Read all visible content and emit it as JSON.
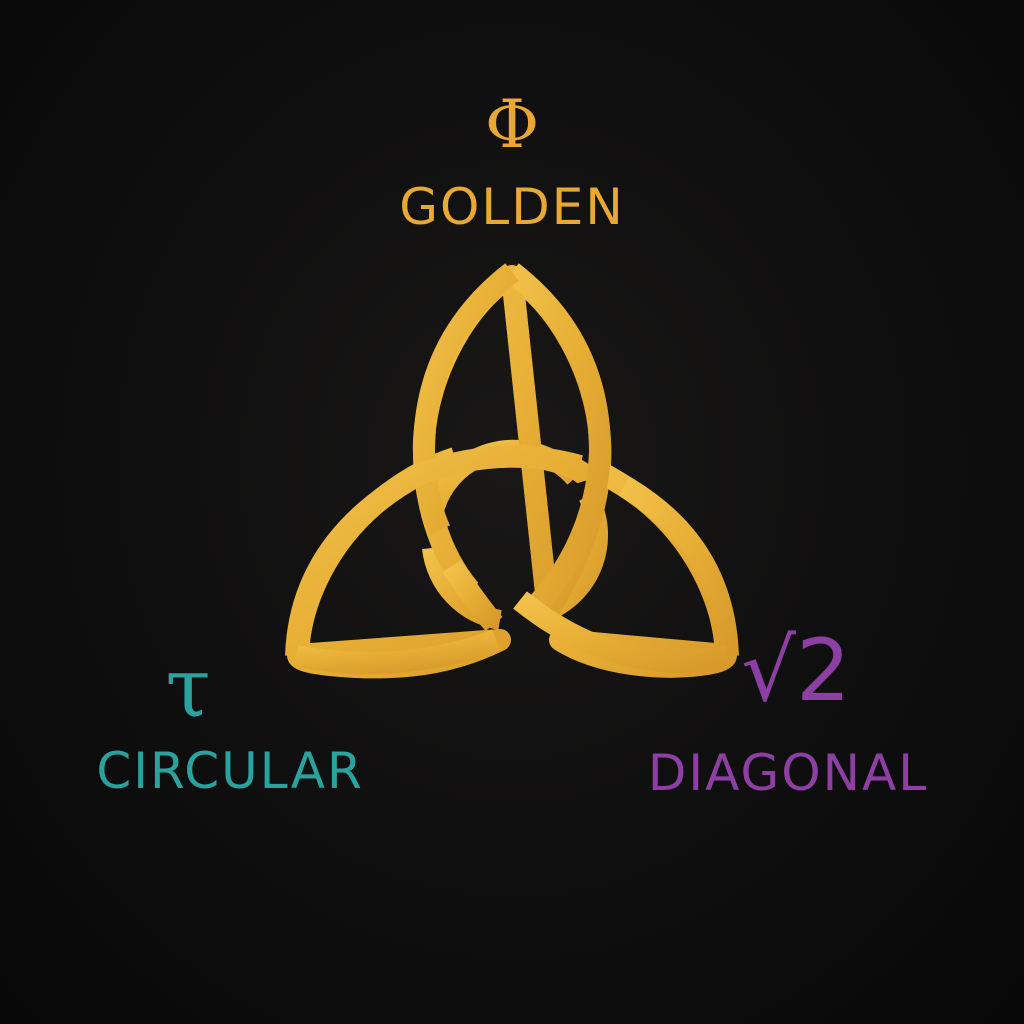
{
  "diagram": {
    "nodes": [
      {
        "id": "golden",
        "symbol": "Φ",
        "label": "GOLDEN",
        "color": "#E9A833"
      },
      {
        "id": "circular",
        "symbol": "τ",
        "label": "CIRCULAR",
        "color": "#2AA39F"
      },
      {
        "id": "diagonal",
        "symbol": "√2",
        "label": "DIAGONAL",
        "color": "#8E3FA3"
      }
    ],
    "knot": {
      "shape": "triquetra",
      "color": "#E9B23A"
    }
  }
}
